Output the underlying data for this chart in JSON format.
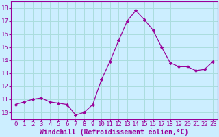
{
  "x": [
    0,
    1,
    2,
    3,
    4,
    5,
    6,
    7,
    8,
    9,
    10,
    11,
    12,
    13,
    14,
    15,
    16,
    17,
    18,
    19,
    20,
    21,
    22,
    23
  ],
  "y": [
    10.6,
    10.8,
    11.0,
    11.1,
    10.8,
    10.7,
    10.6,
    9.8,
    10.0,
    10.6,
    12.5,
    13.9,
    15.5,
    17.0,
    17.8,
    17.1,
    16.3,
    15.0,
    13.8,
    13.5,
    13.5,
    13.2,
    13.3,
    13.9
  ],
  "line_color": "#990099",
  "marker": "D",
  "marker_size": 2.2,
  "bg_color": "#cceeff",
  "grid_color": "#aadddd",
  "text_color": "#990099",
  "xlabel": "Windchill (Refroidissement éolien,°C)",
  "xlim": [
    -0.5,
    23.5
  ],
  "ylim": [
    9.5,
    18.5
  ],
  "yticks": [
    10,
    11,
    12,
    13,
    14,
    15,
    16,
    17,
    18
  ],
  "xticks": [
    0,
    1,
    2,
    3,
    4,
    5,
    6,
    7,
    8,
    9,
    10,
    11,
    12,
    13,
    14,
    15,
    16,
    17,
    18,
    19,
    20,
    21,
    22,
    23
  ],
  "tick_label_fontsize": 6.5,
  "xlabel_fontsize": 7.0
}
